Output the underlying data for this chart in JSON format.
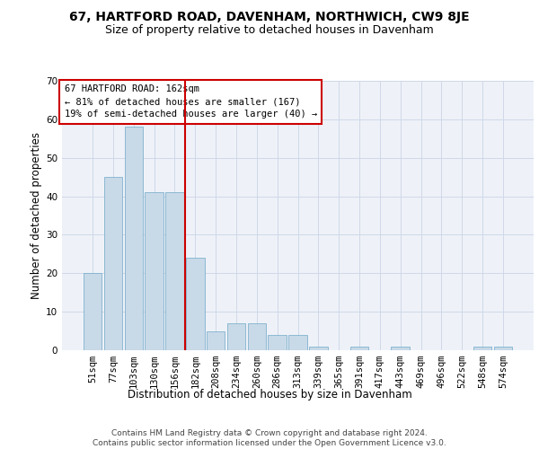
{
  "title": "67, HARTFORD ROAD, DAVENHAM, NORTHWICH, CW9 8JE",
  "subtitle": "Size of property relative to detached houses in Davenham",
  "xlabel": "Distribution of detached houses by size in Davenham",
  "ylabel": "Number of detached properties",
  "categories": [
    "51sqm",
    "77sqm",
    "103sqm",
    "130sqm",
    "156sqm",
    "182sqm",
    "208sqm",
    "234sqm",
    "260sqm",
    "286sqm",
    "313sqm",
    "339sqm",
    "365sqm",
    "391sqm",
    "417sqm",
    "443sqm",
    "469sqm",
    "496sqm",
    "522sqm",
    "548sqm",
    "574sqm"
  ],
  "values": [
    20,
    45,
    58,
    41,
    41,
    24,
    5,
    7,
    7,
    4,
    4,
    1,
    0,
    1,
    0,
    1,
    0,
    0,
    0,
    1,
    1
  ],
  "bar_color": "#c8d9e8",
  "bar_edge_color": "#6fa8c8",
  "grid_color": "#d0d8e8",
  "background_color": "#eef2f8",
  "vline_x": 4.5,
  "vline_color": "#cc0000",
  "annotation_text": "67 HARTFORD ROAD: 162sqm\n← 81% of detached houses are smaller (167)\n19% of semi-detached houses are larger (40) →",
  "annotation_box_color": "#ffffff",
  "annotation_box_edge": "#cc0000",
  "ylim": [
    0,
    70
  ],
  "yticks": [
    0,
    10,
    20,
    30,
    40,
    50,
    60,
    70
  ],
  "footer_text": "Contains HM Land Registry data © Crown copyright and database right 2024.\nContains public sector information licensed under the Open Government Licence v3.0.",
  "title_fontsize": 10,
  "subtitle_fontsize": 9,
  "xlabel_fontsize": 8.5,
  "ylabel_fontsize": 8.5,
  "tick_fontsize": 7.5,
  "annotation_fontsize": 7.5,
  "footer_fontsize": 6.5
}
